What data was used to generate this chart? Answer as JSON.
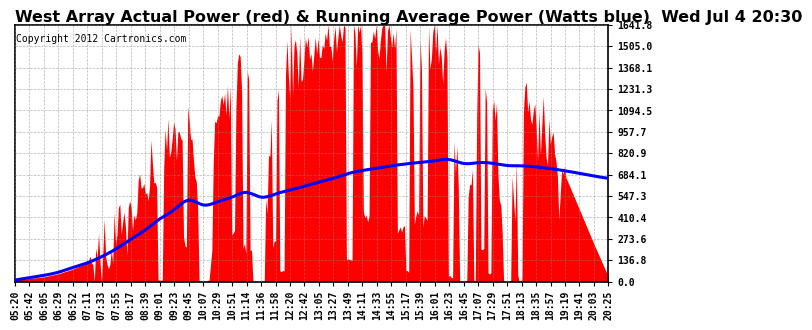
{
  "title": "West Array Actual Power (red) & Running Average Power (Watts blue)  Wed Jul 4 20:30",
  "copyright": "Copyright 2012 Cartronics.com",
  "ymax": 1641.8,
  "yticks": [
    0.0,
    136.8,
    273.6,
    410.4,
    547.3,
    684.1,
    820.9,
    957.7,
    1094.5,
    1231.3,
    1368.1,
    1505.0,
    1641.8
  ],
  "xtick_labels": [
    "05:20",
    "05:42",
    "06:05",
    "06:29",
    "06:52",
    "07:11",
    "07:33",
    "07:55",
    "08:17",
    "08:39",
    "09:01",
    "09:23",
    "09:45",
    "10:07",
    "10:29",
    "10:51",
    "11:14",
    "11:36",
    "11:58",
    "12:20",
    "12:42",
    "13:05",
    "13:27",
    "13:49",
    "14:11",
    "14:33",
    "14:55",
    "15:17",
    "15:39",
    "16:01",
    "16:23",
    "16:45",
    "17:07",
    "17:29",
    "17:51",
    "18:13",
    "18:35",
    "18:57",
    "19:19",
    "19:41",
    "20:03",
    "20:25"
  ],
  "actual_power": [
    10,
    20,
    30,
    50,
    80,
    120,
    180,
    280,
    420,
    560,
    750,
    900,
    1050,
    50,
    1200,
    1280,
    1350,
    30,
    1380,
    1420,
    1460,
    1500,
    1540,
    1630,
    1580,
    1540,
    1560,
    1510,
    1490,
    1470,
    1440,
    50,
    1380,
    1260,
    30,
    1200,
    1060,
    880,
    680,
    460,
    240,
    30
  ],
  "running_avg": [
    10,
    25,
    40,
    60,
    90,
    120,
    160,
    210,
    270,
    330,
    400,
    460,
    520,
    490,
    510,
    540,
    570,
    540,
    560,
    585,
    610,
    635,
    660,
    690,
    710,
    725,
    740,
    752,
    762,
    772,
    780,
    755,
    760,
    756,
    742,
    740,
    733,
    722,
    708,
    692,
    675,
    660
  ],
  "fill_color": "#FF0000",
  "line_color": "#0000FF",
  "bg_color": "#FFFFFF",
  "grid_color": "#888888",
  "title_fontsize": 11.5,
  "copyright_fontsize": 7,
  "tick_fontsize": 7,
  "title_fontweight": "bold"
}
